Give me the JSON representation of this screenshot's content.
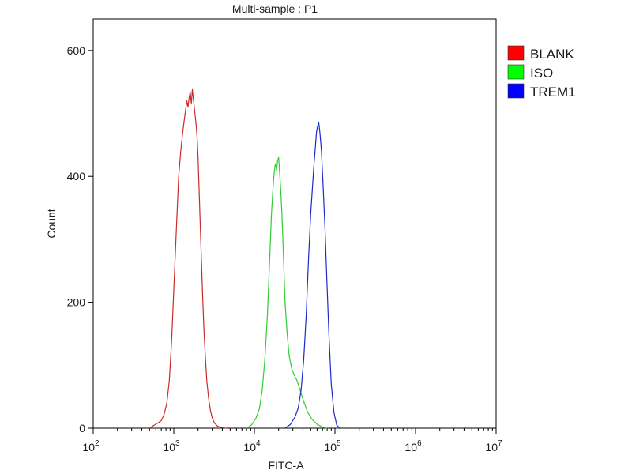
{
  "chart_data": {
    "type": "line",
    "title": "Multi-sample : P1",
    "xlabel": "FITC-A",
    "ylabel": "Count",
    "x_scale": "log",
    "xlim": [
      100,
      10000000
    ],
    "ylim": [
      0,
      650
    ],
    "x_tick_labels": [
      {
        "base": "10",
        "exp": "2"
      },
      {
        "base": "10",
        "exp": "3"
      },
      {
        "base": "10",
        "exp": "4"
      },
      {
        "base": "10",
        "exp": "5"
      },
      {
        "base": "10",
        "exp": "6"
      },
      {
        "base": "10",
        "exp": "7"
      }
    ],
    "y_ticks": [
      "0",
      "200",
      "400",
      "600"
    ],
    "legend_position": "right",
    "series": [
      {
        "name": "BLANK",
        "color": "#cc2b2b",
        "legend_color": "#ff0000",
        "points": [
          [
            500,
            0
          ],
          [
            560,
            4
          ],
          [
            630,
            8
          ],
          [
            700,
            12
          ],
          [
            760,
            22
          ],
          [
            820,
            40
          ],
          [
            880,
            75
          ],
          [
            940,
            140
          ],
          [
            1000,
            220
          ],
          [
            1080,
            320
          ],
          [
            1150,
            400
          ],
          [
            1220,
            440
          ],
          [
            1290,
            470
          ],
          [
            1350,
            490
          ],
          [
            1400,
            505
          ],
          [
            1450,
            520
          ],
          [
            1500,
            510
          ],
          [
            1550,
            525
          ],
          [
            1600,
            534
          ],
          [
            1650,
            515
          ],
          [
            1700,
            538
          ],
          [
            1760,
            520
          ],
          [
            1830,
            500
          ],
          [
            1900,
            480
          ],
          [
            1950,
            460
          ],
          [
            2000,
            430
          ],
          [
            2060,
            380
          ],
          [
            2120,
            330
          ],
          [
            2200,
            270
          ],
          [
            2280,
            210
          ],
          [
            2370,
            155
          ],
          [
            2470,
            110
          ],
          [
            2570,
            75
          ],
          [
            2700,
            48
          ],
          [
            2850,
            28
          ],
          [
            3000,
            16
          ],
          [
            3200,
            8
          ],
          [
            3500,
            3
          ],
          [
            3900,
            1
          ],
          [
            4500,
            0
          ]
        ]
      },
      {
        "name": "ISO",
        "color": "#33cc33",
        "legend_color": "#00ff00",
        "points": [
          [
            8000,
            0
          ],
          [
            9200,
            5
          ],
          [
            10400,
            15
          ],
          [
            11500,
            30
          ],
          [
            12500,
            60
          ],
          [
            13500,
            110
          ],
          [
            14500,
            180
          ],
          [
            15500,
            270
          ],
          [
            16300,
            340
          ],
          [
            17000,
            380
          ],
          [
            17600,
            405
          ],
          [
            18200,
            420
          ],
          [
            18800,
            410
          ],
          [
            19400,
            425
          ],
          [
            20000,
            430
          ],
          [
            20600,
            405
          ],
          [
            21200,
            380
          ],
          [
            22000,
            340
          ],
          [
            23000,
            270
          ],
          [
            24000,
            200
          ],
          [
            25500,
            150
          ],
          [
            27000,
            115
          ],
          [
            29000,
            95
          ],
          [
            31000,
            85
          ],
          [
            34000,
            75
          ],
          [
            37000,
            60
          ],
          [
            41000,
            42
          ],
          [
            46000,
            25
          ],
          [
            52000,
            14
          ],
          [
            60000,
            6
          ],
          [
            70000,
            2
          ],
          [
            80000,
            0
          ]
        ]
      },
      {
        "name": "TREM1",
        "color": "#1a2bcc",
        "legend_color": "#0000ff",
        "points": [
          [
            24000,
            0
          ],
          [
            28000,
            6
          ],
          [
            32000,
            18
          ],
          [
            35000,
            32
          ],
          [
            38000,
            60
          ],
          [
            41000,
            110
          ],
          [
            44000,
            180
          ],
          [
            47000,
            270
          ],
          [
            50000,
            340
          ],
          [
            53000,
            390
          ],
          [
            55000,
            420
          ],
          [
            57000,
            445
          ],
          [
            59000,
            470
          ],
          [
            61000,
            480
          ],
          [
            63000,
            485
          ],
          [
            65000,
            470
          ],
          [
            68000,
            440
          ],
          [
            71000,
            390
          ],
          [
            75000,
            320
          ],
          [
            79000,
            240
          ],
          [
            84000,
            150
          ],
          [
            90000,
            70
          ],
          [
            97000,
            25
          ],
          [
            105000,
            5
          ],
          [
            115000,
            0
          ]
        ]
      }
    ]
  }
}
